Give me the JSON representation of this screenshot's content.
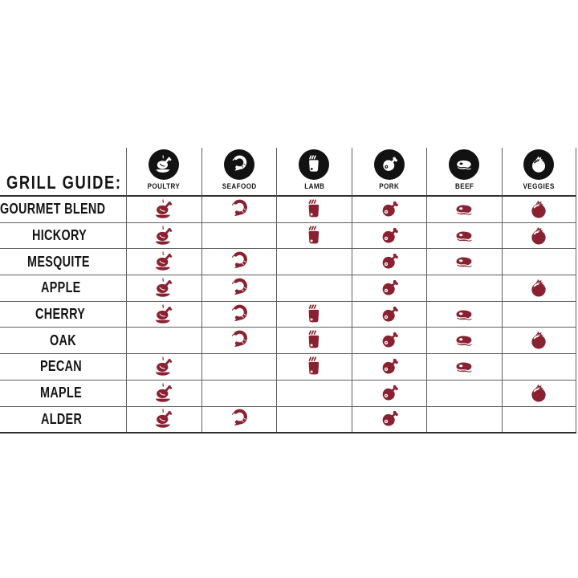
{
  "title": "GRILL GUIDE:",
  "columns": [
    {
      "label": "POULTRY",
      "icon": "poultry-icon"
    },
    {
      "label": "SEAFOOD",
      "icon": "seafood-icon"
    },
    {
      "label": "LAMB",
      "icon": "lamb-icon"
    },
    {
      "label": "PORK",
      "icon": "pork-icon"
    },
    {
      "label": "BEEF",
      "icon": "beef-icon"
    },
    {
      "label": "VEGGIES",
      "icon": "veggies-icon"
    }
  ],
  "rows": [
    {
      "label": "GOURMET BLEND",
      "pairings": [
        true,
        true,
        true,
        true,
        true,
        true
      ]
    },
    {
      "label": "HICKORY",
      "pairings": [
        true,
        false,
        true,
        true,
        true,
        true
      ]
    },
    {
      "label": "MESQUITE",
      "pairings": [
        true,
        true,
        false,
        true,
        true,
        false
      ]
    },
    {
      "label": "APPLE",
      "pairings": [
        true,
        true,
        false,
        true,
        false,
        true
      ]
    },
    {
      "label": "CHERRY",
      "pairings": [
        true,
        true,
        true,
        true,
        true,
        false
      ]
    },
    {
      "label": "OAK",
      "pairings": [
        false,
        true,
        true,
        true,
        true,
        true
      ]
    },
    {
      "label": "PECAN",
      "pairings": [
        true,
        false,
        true,
        true,
        true,
        false
      ]
    },
    {
      "label": "MAPLE",
      "pairings": [
        true,
        false,
        false,
        true,
        false,
        true
      ]
    },
    {
      "label": "ALDER",
      "pairings": [
        true,
        true,
        false,
        true,
        false,
        false
      ]
    }
  ],
  "colors": {
    "pairing_icon": "#8A2130",
    "header_circle": "#121212",
    "grid_line": "#5f5f5f",
    "strong_line": "#2e2e2e",
    "text": "#141414"
  },
  "chart_data": {
    "type": "table",
    "title": "GRILL GUIDE:",
    "columns": [
      "POULTRY",
      "SEAFOOD",
      "LAMB",
      "PORK",
      "BEEF",
      "VEGGIES"
    ],
    "row_labels": [
      "GOURMET BLEND",
      "HICKORY",
      "MESQUITE",
      "APPLE",
      "CHERRY",
      "OAK",
      "PECAN",
      "MAPLE",
      "ALDER"
    ],
    "matrix": [
      [
        1,
        1,
        1,
        1,
        1,
        1
      ],
      [
        1,
        0,
        1,
        1,
        1,
        1
      ],
      [
        1,
        1,
        0,
        1,
        1,
        0
      ],
      [
        1,
        1,
        0,
        1,
        0,
        1
      ],
      [
        1,
        1,
        1,
        1,
        1,
        0
      ],
      [
        0,
        1,
        1,
        1,
        1,
        1
      ],
      [
        1,
        0,
        1,
        1,
        1,
        0
      ],
      [
        1,
        0,
        0,
        1,
        0,
        1
      ],
      [
        1,
        1,
        0,
        1,
        0,
        0
      ]
    ]
  }
}
